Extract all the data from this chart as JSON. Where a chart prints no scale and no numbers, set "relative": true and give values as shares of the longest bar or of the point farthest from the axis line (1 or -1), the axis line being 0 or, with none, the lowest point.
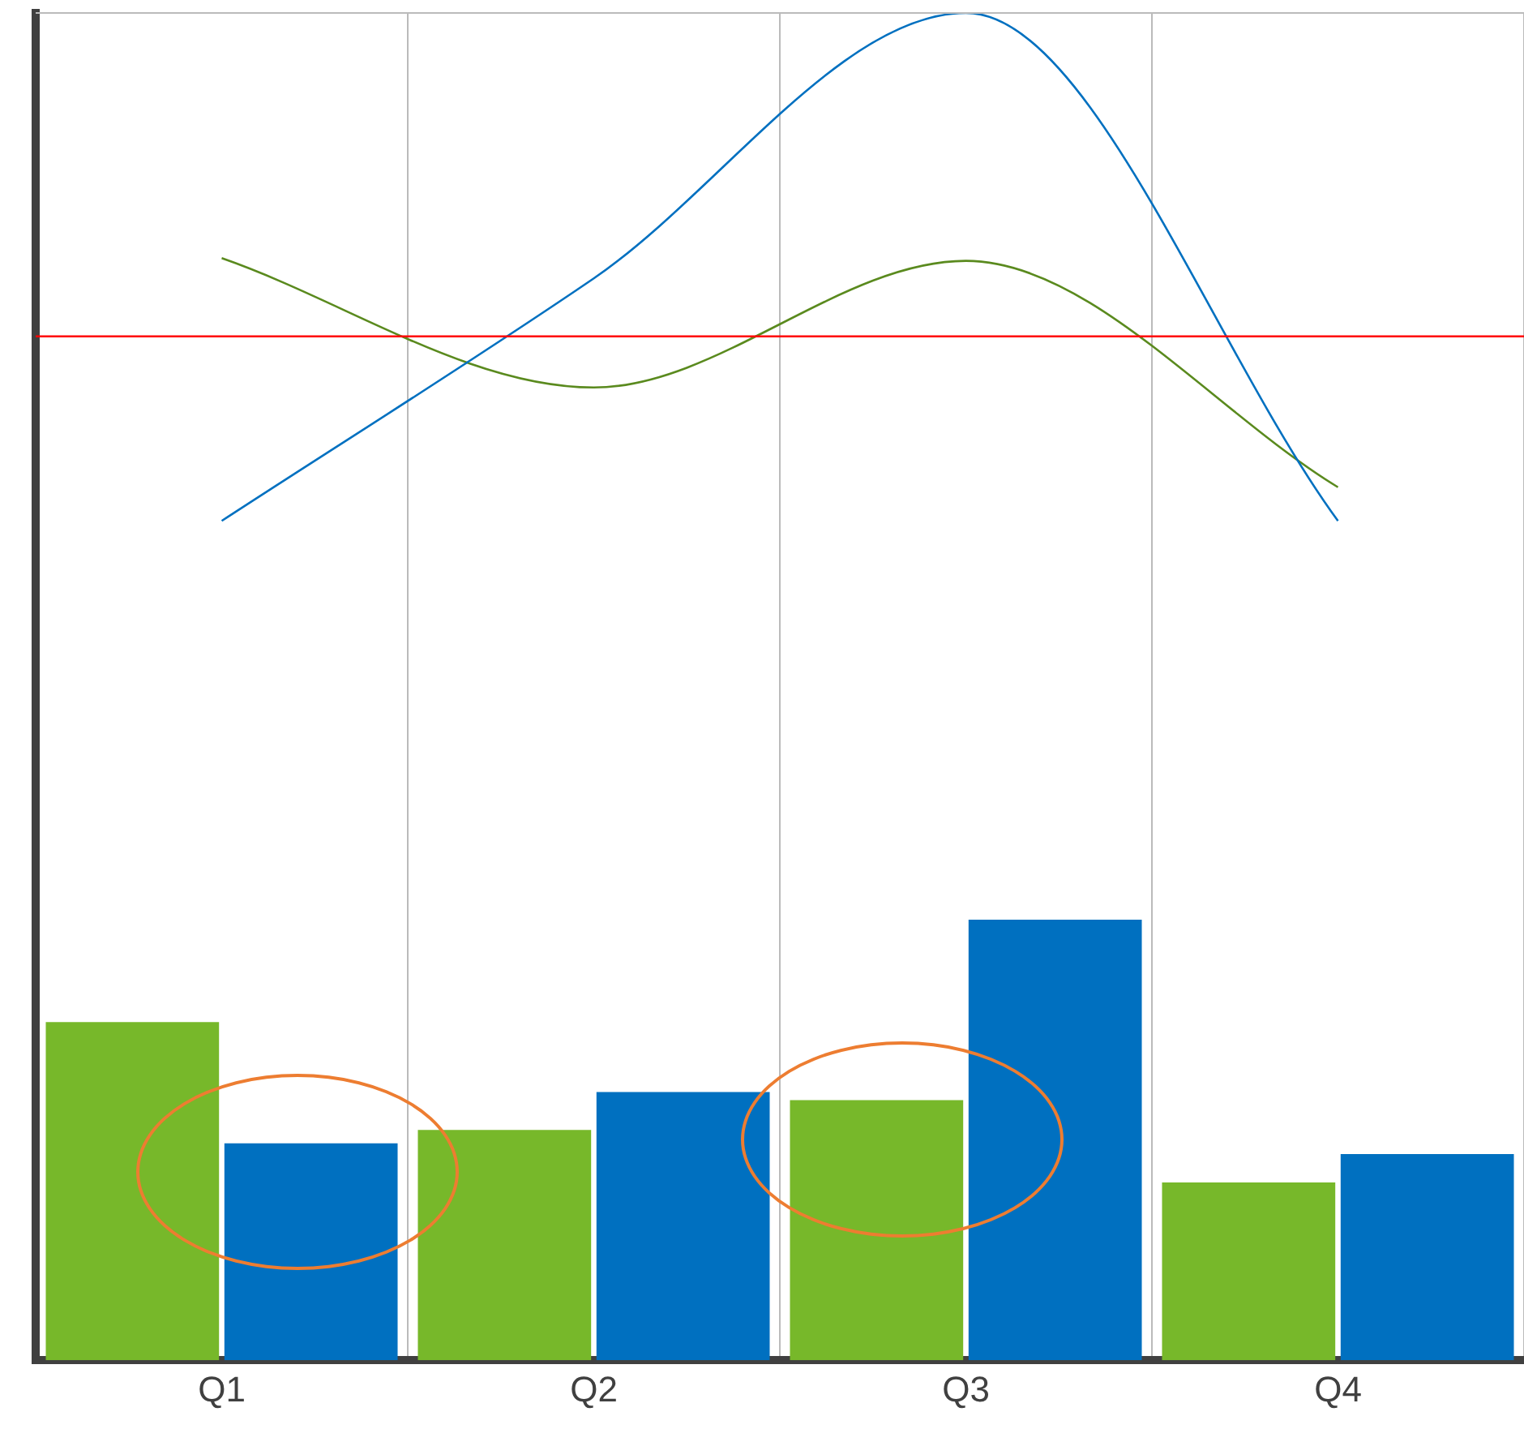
{
  "chart_data": {
    "type": "bar",
    "relative": true,
    "categories": [
      "Q1",
      "Q2",
      "Q3",
      "Q4"
    ],
    "grid": "x",
    "legend": false,
    "series": [
      {
        "type": "bar",
        "color": "#77b82a",
        "values": [
          0.251,
          0.171,
          0.193,
          0.132
        ]
      },
      {
        "type": "bar",
        "color": "#0070c0",
        "values": [
          0.161,
          0.199,
          0.327,
          0.153
        ]
      },
      {
        "type": "line",
        "color": "#0070c0",
        "values": [
          0.623,
          0.803,
          1.0,
          0.623
        ]
      },
      {
        "type": "line",
        "color": "#5a8a1e",
        "values": [
          0.818,
          0.722,
          0.816,
          0.648
        ]
      }
    ],
    "ref_lines": [
      {
        "axis": "y",
        "value": 0.76,
        "color": "#ff0000"
      }
    ]
  }
}
